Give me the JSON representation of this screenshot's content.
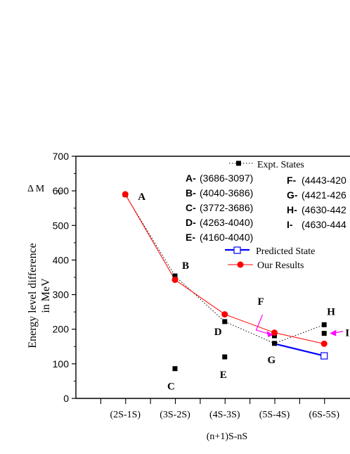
{
  "chart_data": {
    "type": "line",
    "xlabel": "(n+1)S-nS",
    "ylabel_symbol": "Δ M",
    "ylabel_subscript": "V",
    "ylabel_lines": [
      "Energy level difference",
      "in MeV"
    ],
    "categories": [
      "(2S-1S)",
      "(3S-2S)",
      "(4S-3S)",
      "(5S-4S)",
      "(6S-5S)"
    ],
    "ylim": [
      0,
      700
    ],
    "yticks": [
      0,
      100,
      200,
      300,
      400,
      500,
      600,
      700
    ],
    "grid": false,
    "legend_position": "top-right",
    "series": [
      {
        "name": "Expt. States",
        "color": "#000000",
        "marker": "filled-square",
        "line": "dotted",
        "points": [
          [
            1,
            589
          ],
          [
            2,
            354
          ],
          [
            3,
            222
          ],
          [
            4,
            159
          ],
          [
            5,
            213
          ]
        ]
      },
      {
        "name": "Our Results",
        "color": "#ff0000",
        "marker": "filled-circle",
        "line": "solid",
        "points": [
          [
            1,
            590
          ],
          [
            2,
            343
          ],
          [
            3,
            243
          ],
          [
            4,
            190
          ],
          [
            5,
            158
          ]
        ]
      },
      {
        "name": "Predicted State",
        "color": "#0000ff",
        "marker": "open-square",
        "line": "solid",
        "points": [
          [
            4,
            158
          ],
          [
            5,
            123
          ]
        ]
      }
    ],
    "extra_expt_points": [
      [
        2,
        86
      ],
      [
        3,
        120
      ],
      [
        4,
        181
      ],
      [
        5,
        188
      ]
    ],
    "point_labels": [
      {
        "text": "A",
        "x": 1,
        "y": 590
      },
      {
        "text": "B",
        "x": 2,
        "y": 354
      },
      {
        "text": "C",
        "x": 2,
        "y": 86
      },
      {
        "text": "D",
        "x": 3,
        "y": 222
      },
      {
        "text": "E",
        "x": 3,
        "y": 120
      },
      {
        "text": "F",
        "x": 4,
        "y": 181
      },
      {
        "text": "G",
        "x": 4,
        "y": 159
      },
      {
        "text": "H",
        "x": 5,
        "y": 213
      },
      {
        "text": "I",
        "x": 5,
        "y": 188
      }
    ],
    "annotation_color": "#ff00ff",
    "legend_entries": [
      {
        "label": "A-",
        "value": "(3686-3097)"
      },
      {
        "label": "B-",
        "value": "(4040-3686)"
      },
      {
        "label": "C-",
        "value": "(3772-3686)"
      },
      {
        "label": "D-",
        "value": "(4263-4040)"
      },
      {
        "label": "E-",
        "value": "(4160-4040)"
      },
      {
        "label": "F-",
        "value": "(4443-420"
      },
      {
        "label": "G-",
        "value": "(4421-426"
      },
      {
        "label": "H-",
        "value": "(4630-442"
      },
      {
        "label": "I-",
        "value": "(4630-444"
      }
    ]
  }
}
